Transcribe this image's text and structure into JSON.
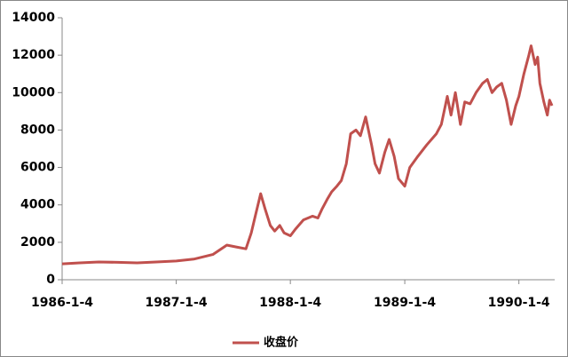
{
  "chart_data": {
    "type": "line",
    "x": [
      "1986-1-4",
      "1986-3-1",
      "1986-5-1",
      "1986-7-1",
      "1986-9-1",
      "1986-11-1",
      "1987-1-4",
      "1987-3-1",
      "1987-5-1",
      "1987-6-15",
      "1987-7-15",
      "1987-8-15",
      "1987-9-1",
      "1987-9-15",
      "1987-10-1",
      "1987-10-15",
      "1987-11-1",
      "1987-11-15",
      "1987-12-1",
      "1987-12-15",
      "1988-1-4",
      "1988-1-20",
      "1988-2-15",
      "1988-3-15",
      "1988-4-1",
      "1988-4-15",
      "1988-5-1",
      "1988-5-15",
      "1988-6-1",
      "1988-6-15",
      "1988-7-1",
      "1988-7-15",
      "1988-8-1",
      "1988-8-15",
      "1988-9-1",
      "1988-9-20",
      "1988-10-1",
      "1988-10-15",
      "1988-11-1",
      "1988-11-15",
      "1988-12-1",
      "1988-12-15",
      "1989-1-4",
      "1989-1-20",
      "1989-2-15",
      "1989-3-15",
      "1989-4-15",
      "1989-5-1",
      "1989-5-20",
      "1989-6-1",
      "1989-6-15",
      "1989-7-1",
      "1989-7-15",
      "1989-8-1",
      "1989-8-20",
      "1989-9-10",
      "1989-9-25",
      "1989-10-10",
      "1989-10-25",
      "1989-11-10",
      "1989-11-25",
      "1989-12-10",
      "1989-12-25",
      "1990-1-4",
      "1990-1-20",
      "1990-2-5",
      "1990-2-12",
      "1990-2-25",
      "1990-3-5",
      "1990-3-12",
      "1990-3-25",
      "1990-4-5",
      "1990-4-12",
      "1990-4-20"
    ],
    "series": [
      {
        "name": "收盘价",
        "color": "#c0504d",
        "values": [
          850,
          900,
          950,
          930,
          900,
          950,
          1000,
          1100,
          1350,
          1850,
          1750,
          1650,
          2500,
          3500,
          4600,
          3800,
          2900,
          2600,
          2900,
          2500,
          2350,
          2700,
          3200,
          3400,
          3300,
          3800,
          4300,
          4700,
          5000,
          5300,
          6200,
          7800,
          8000,
          7700,
          8700,
          7200,
          6200,
          5700,
          6800,
          7500,
          6600,
          5400,
          5000,
          6000,
          6600,
          7200,
          7800,
          8300,
          9800,
          8800,
          10000,
          8300,
          9500,
          9400,
          10000,
          10500,
          10700,
          10000,
          10300,
          10500,
          9600,
          8300,
          9300,
          9800,
          11000,
          12000,
          12500,
          11500,
          11900,
          10500,
          9500,
          8800,
          9600,
          9300
        ]
      }
    ],
    "xlim": [
      "1986-1-4",
      "1990-4-20"
    ],
    "xticks": [
      "1986-1-4",
      "1987-1-4",
      "1988-1-4",
      "1989-1-4",
      "1990-1-4"
    ],
    "ylim": [
      0,
      14000
    ],
    "yticks": [
      0,
      2000,
      4000,
      6000,
      8000,
      10000,
      12000,
      14000
    ],
    "legend": "bottom"
  }
}
